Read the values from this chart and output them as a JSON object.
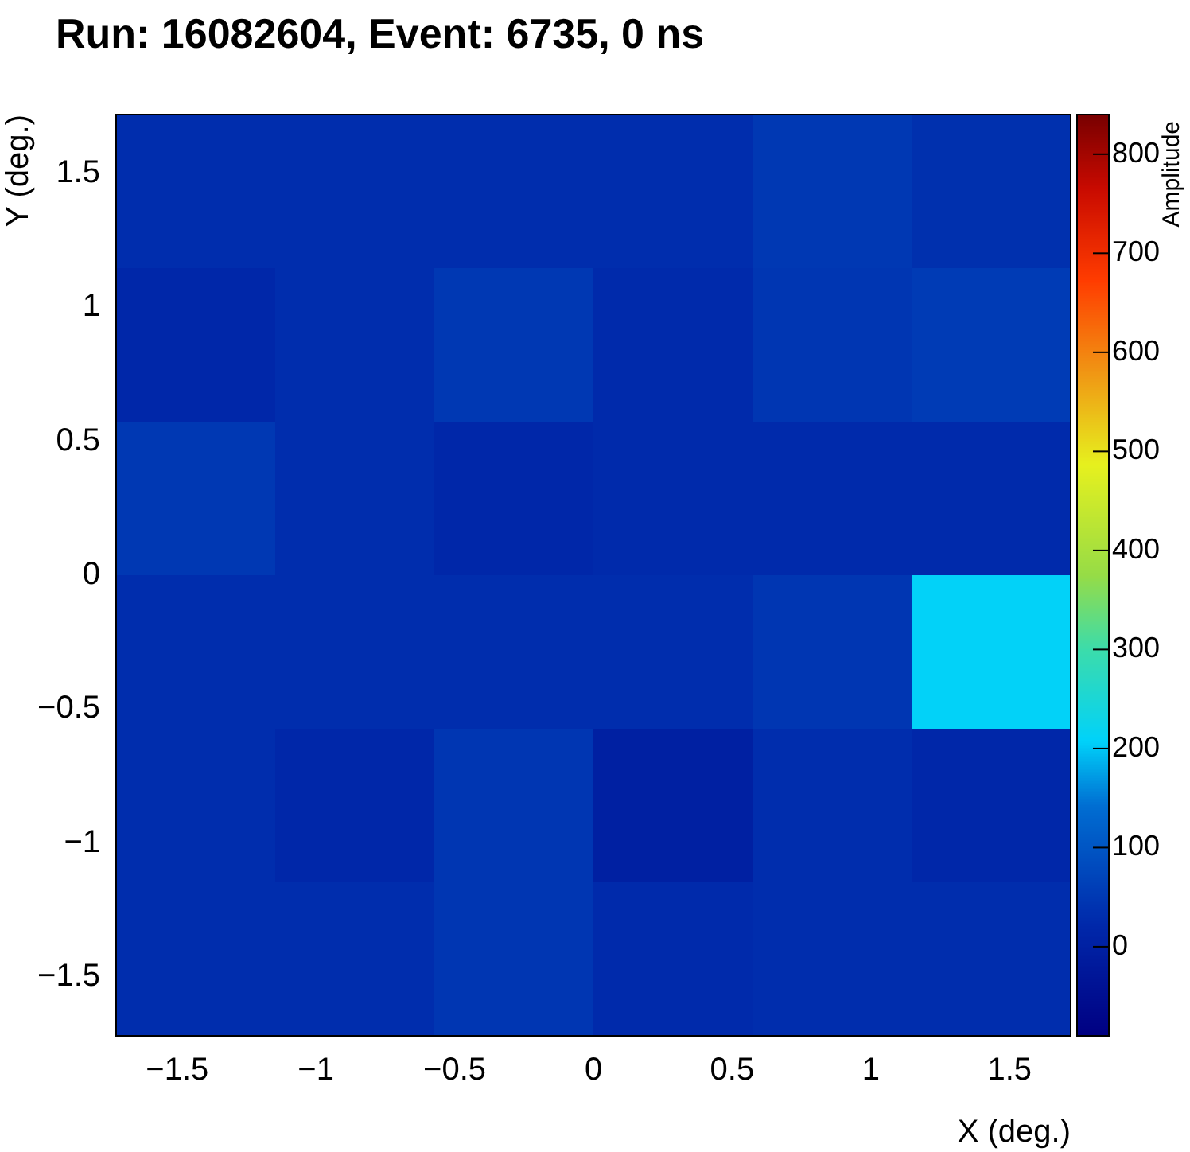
{
  "chart_data": {
    "type": "heatmap",
    "title": "Run: 16082604, Event: 6735, 0 ns",
    "xlabel": "X (deg.)",
    "ylabel": "Y (deg.)",
    "clabel": "Amplitude",
    "xlim": [
      -1.72,
      1.72
    ],
    "xticks": [
      {
        "value": -1.5,
        "label": "−1.5"
      },
      {
        "value": -1,
        "label": "−1"
      },
      {
        "value": -0.5,
        "label": "−0.5"
      },
      0,
      0.5,
      1,
      1.5
    ],
    "ylim": [
      -1.72,
      1.72
    ],
    "yticks": [
      {
        "value": -1.5,
        "label": "−1.5"
      },
      {
        "value": -1,
        "label": "−1"
      },
      {
        "value": -0.5,
        "label": "−0.5"
      },
      0,
      0.5,
      1,
      1.5
    ],
    "clim": [
      -90,
      840
    ],
    "cticks": [
      0,
      100,
      200,
      300,
      400,
      500,
      600,
      700,
      800
    ],
    "cells": [
      [
        30,
        30,
        30,
        30,
        50,
        35
      ],
      [
        20,
        30,
        50,
        25,
        45,
        55
      ],
      [
        50,
        30,
        20,
        25,
        25,
        25
      ],
      [
        30,
        30,
        30,
        30,
        45,
        210
      ],
      [
        30,
        20,
        45,
        0,
        30,
        20
      ],
      [
        30,
        30,
        45,
        25,
        30,
        30
      ]
    ]
  }
}
